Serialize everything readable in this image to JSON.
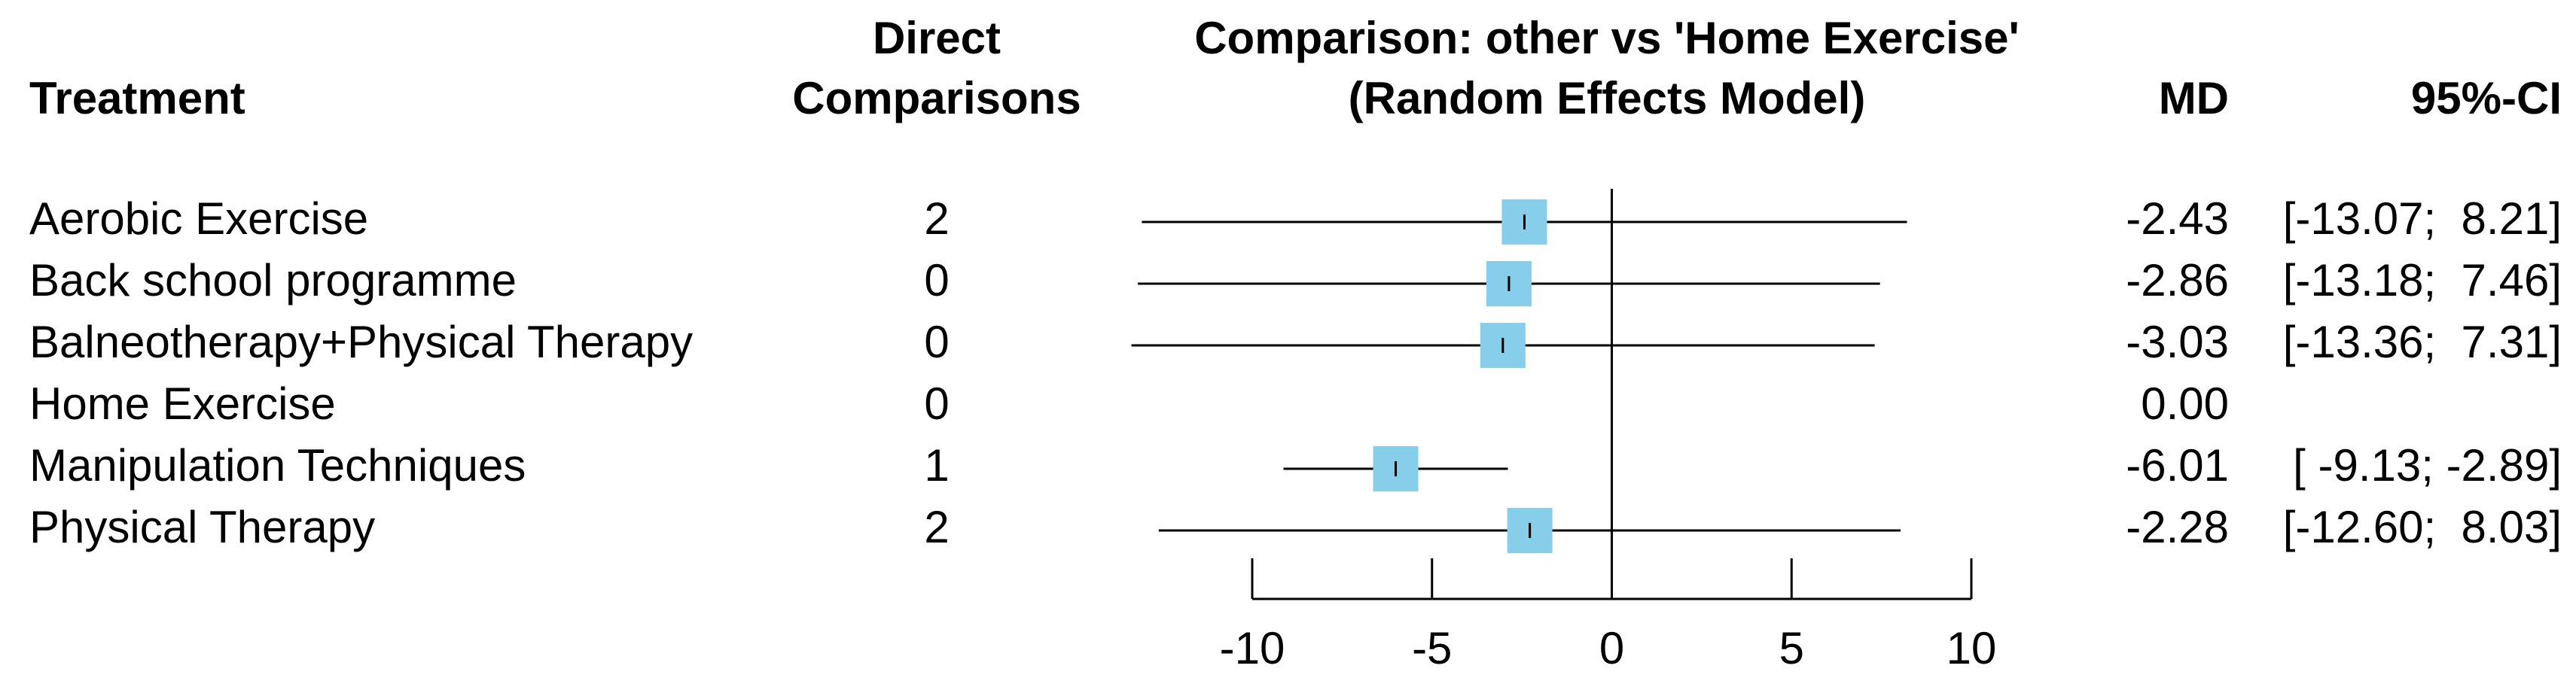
{
  "chart_data": {
    "type": "forest",
    "title": [
      "Comparison: other vs 'Home Exercise'",
      "(Random Effects Model)"
    ],
    "treatment_header": "Treatment",
    "direct_header": [
      "Direct",
      "Comparisons"
    ],
    "md_header": "MD",
    "ci_header": "95%-CI",
    "categories": [
      "Aerobic Exercise",
      "Back school programme",
      "Balneotherapy+Physical Therapy",
      "Home Exercise",
      "Manipulation Techniques",
      "Physical Therapy"
    ],
    "direct_comparisons": [
      2,
      0,
      0,
      0,
      1,
      2
    ],
    "values": [
      -2.43,
      -2.86,
      -3.03,
      0,
      -6.01,
      -2.28
    ],
    "value_labels": [
      "-2.43",
      "-2.86",
      "-3.03",
      "0.00",
      "-6.01",
      "-2.28"
    ],
    "lower": [
      -13.07,
      -13.18,
      -13.36,
      null,
      -9.13,
      -12.6
    ],
    "upper": [
      8.21,
      7.46,
      7.31,
      null,
      -2.89,
      8.03
    ],
    "ci_labels": [
      "[-13.07;  8.21]",
      "[-13.18;  7.46]",
      "[-13.36;  7.31]",
      null,
      "[ -9.13; -2.89]",
      "[-12.60;  8.03]"
    ],
    "xlim": [
      -10,
      10
    ],
    "xticks": [
      -10,
      -5,
      0,
      5,
      10
    ],
    "color": "#87ceeb",
    "reference_line": 0
  }
}
